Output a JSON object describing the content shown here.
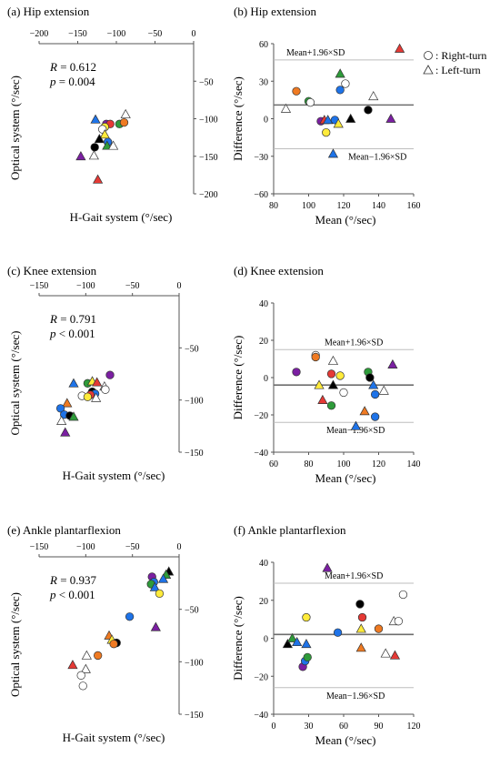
{
  "legend": {
    "circle": "○: Right-turn",
    "triangle": "△: Left-turn"
  },
  "chart_data": [
    {
      "panel": "a",
      "type": "scatter",
      "title": "(a) Hip extension",
      "xlabel": "H-Gait system (°/sec)",
      "ylabel": "Optical system (°/sec)",
      "xlim": [
        -200,
        0
      ],
      "ylim": [
        -200,
        0
      ],
      "xticks": [
        -200,
        -150,
        -100,
        -50,
        0
      ],
      "yticks": [
        -50,
        -100,
        -150,
        -200
      ],
      "annotations": [
        "R = 0.612",
        "p = 0.004"
      ],
      "points": [
        {
          "x": -127,
          "y": -101,
          "shape": "triangle",
          "color": "#1e73e8"
        },
        {
          "x": -113,
          "y": -107,
          "shape": "circle",
          "color": "#7b1fa2"
        },
        {
          "x": -108,
          "y": -107,
          "shape": "circle",
          "color": "#e53935"
        },
        {
          "x": -115,
          "y": -111,
          "shape": "circle",
          "color": "#ffeb3b"
        },
        {
          "x": -96,
          "y": -107,
          "shape": "circle",
          "color": "#2e9b3a"
        },
        {
          "x": -90,
          "y": -105,
          "shape": "circle",
          "color": "#ef7a22"
        },
        {
          "x": -88,
          "y": -94,
          "shape": "triangle",
          "color": "#ffffff"
        },
        {
          "x": -118,
          "y": -114,
          "shape": "circle",
          "color": "#ffffff"
        },
        {
          "x": -115,
          "y": -121,
          "shape": "triangle",
          "color": "#ffeb3b"
        },
        {
          "x": -122,
          "y": -127,
          "shape": "triangle",
          "color": "#000000"
        },
        {
          "x": -111,
          "y": -131,
          "shape": "circle",
          "color": "#1e73e8"
        },
        {
          "x": -112,
          "y": -136,
          "shape": "triangle",
          "color": "#2e9b3a"
        },
        {
          "x": -104,
          "y": -136,
          "shape": "triangle",
          "color": "#ffffff"
        },
        {
          "x": -128,
          "y": -138,
          "shape": "circle",
          "color": "#000000"
        },
        {
          "x": -146,
          "y": -150,
          "shape": "triangle",
          "color": "#7b1fa2"
        },
        {
          "x": -129,
          "y": -149,
          "shape": "triangle",
          "color": "#ffffff"
        },
        {
          "x": -124,
          "y": -181,
          "shape": "triangle",
          "color": "#e53935"
        }
      ]
    },
    {
      "panel": "b",
      "type": "scatter",
      "title": "(b) Hip extension",
      "xlabel": "Mean (°/sec)",
      "ylabel": "Difference (°/sec)",
      "xlim": [
        80,
        160
      ],
      "ylim": [
        -60,
        60
      ],
      "xticks": [
        80,
        100,
        120,
        140,
        160
      ],
      "yticks": [
        60,
        30,
        0,
        -30,
        -60
      ],
      "mean_line": 11,
      "upper_line": 47,
      "lower_line": -24,
      "upper_label": "Mean+1.96×SD",
      "lower_label": "Mean−1.96×SD",
      "points": [
        {
          "x": 87,
          "y": 8,
          "shape": "triangle",
          "color": "#ffffff"
        },
        {
          "x": 93,
          "y": 22,
          "shape": "circle",
          "color": "#ef7a22"
        },
        {
          "x": 100,
          "y": 14,
          "shape": "circle",
          "color": "#2e9b3a"
        },
        {
          "x": 101,
          "y": 13,
          "shape": "circle",
          "color": "#ffffff"
        },
        {
          "x": 107,
          "y": -2,
          "shape": "circle",
          "color": "#7b1fa2"
        },
        {
          "x": 109,
          "y": -1,
          "shape": "triangle",
          "color": "#e53935"
        },
        {
          "x": 111,
          "y": -1,
          "shape": "triangle",
          "color": "#1e73e8"
        },
        {
          "x": 110,
          "y": -11,
          "shape": "circle",
          "color": "#ffeb3b"
        },
        {
          "x": 115,
          "y": -1,
          "shape": "circle",
          "color": "#1e73e8"
        },
        {
          "x": 114,
          "y": -28,
          "shape": "triangle",
          "color": "#1e73e8"
        },
        {
          "x": 117,
          "y": -4,
          "shape": "triangle",
          "color": "#ffeb3b"
        },
        {
          "x": 118,
          "y": 23,
          "shape": "circle",
          "color": "#1e73e8"
        },
        {
          "x": 118,
          "y": 36,
          "shape": "triangle",
          "color": "#2e9b3a"
        },
        {
          "x": 121,
          "y": 28,
          "shape": "circle",
          "color": "#ffffff"
        },
        {
          "x": 124,
          "y": 0,
          "shape": "triangle",
          "color": "#000000"
        },
        {
          "x": 134,
          "y": 7,
          "shape": "circle",
          "color": "#000000"
        },
        {
          "x": 137,
          "y": 18,
          "shape": "triangle",
          "color": "#ffffff"
        },
        {
          "x": 147,
          "y": 0,
          "shape": "triangle",
          "color": "#7b1fa2"
        },
        {
          "x": 152,
          "y": 56,
          "shape": "triangle",
          "color": "#e53935"
        }
      ]
    },
    {
      "panel": "c",
      "type": "scatter",
      "title": "(c) Knee extension",
      "xlabel": "H-Gait system (°/sec)",
      "ylabel": "Optical system (°/sec)",
      "xlim": [
        -150,
        0
      ],
      "ylim": [
        -150,
        0
      ],
      "xticks": [
        -150,
        -100,
        -50,
        0
      ],
      "yticks": [
        -50,
        -100,
        -150
      ],
      "annotations": [
        "R = 0.791",
        "p < 0.001"
      ],
      "points": [
        {
          "x": -74,
          "y": -76,
          "shape": "circle",
          "color": "#7b1fa2"
        },
        {
          "x": -98,
          "y": -84,
          "shape": "circle",
          "color": "#2e9b3a"
        },
        {
          "x": -93,
          "y": -82,
          "shape": "triangle",
          "color": "#ffeb3b"
        },
        {
          "x": -88,
          "y": -83,
          "shape": "triangle",
          "color": "#e53935"
        },
        {
          "x": -113,
          "y": -84,
          "shape": "triangle",
          "color": "#1e73e8"
        },
        {
          "x": -80,
          "y": -87,
          "shape": "triangle",
          "color": "#ffffff"
        },
        {
          "x": -79,
          "y": -90,
          "shape": "circle",
          "color": "#ffffff"
        },
        {
          "x": -93,
          "y": -92,
          "shape": "circle",
          "color": "#000000"
        },
        {
          "x": -90,
          "y": -94,
          "shape": "circle",
          "color": "#1e73e8"
        },
        {
          "x": -95,
          "y": -95,
          "shape": "circle",
          "color": "#e53935"
        },
        {
          "x": -104,
          "y": -96,
          "shape": "circle",
          "color": "#ffffff"
        },
        {
          "x": -98,
          "y": -97,
          "shape": "circle",
          "color": "#ffeb3b"
        },
        {
          "x": -89,
          "y": -98,
          "shape": "triangle",
          "color": "#ffffff"
        },
        {
          "x": -120,
          "y": -103,
          "shape": "triangle",
          "color": "#ef7a22"
        },
        {
          "x": -127,
          "y": -108,
          "shape": "circle",
          "color": "#1e73e8"
        },
        {
          "x": -123,
          "y": -114,
          "shape": "circle",
          "color": "#1e73e8"
        },
        {
          "x": -117,
          "y": -115,
          "shape": "circle",
          "color": "#000000"
        },
        {
          "x": -113,
          "y": -116,
          "shape": "triangle",
          "color": "#2e9b3a"
        },
        {
          "x": -126,
          "y": -120,
          "shape": "triangle",
          "color": "#ffffff"
        },
        {
          "x": -122,
          "y": -131,
          "shape": "triangle",
          "color": "#7b1fa2"
        }
      ]
    },
    {
      "panel": "d",
      "type": "scatter",
      "title": "(d) Knee extension",
      "xlabel": "Mean (°/sec)",
      "ylabel": "Difference (°/sec)",
      "xlim": [
        60,
        140
      ],
      "ylim": [
        -40,
        40
      ],
      "xticks": [
        60,
        80,
        100,
        120,
        140
      ],
      "yticks": [
        40,
        20,
        0,
        -20,
        -40
      ],
      "mean_line": -4,
      "upper_line": 15,
      "lower_line": -24,
      "upper_label": "Mean+1.96×SD",
      "lower_label": "Mean−1.96×SD",
      "points": [
        {
          "x": 73,
          "y": 3,
          "shape": "circle",
          "color": "#7b1fa2"
        },
        {
          "x": 84,
          "y": 12,
          "shape": "circle",
          "color": "#ffffff"
        },
        {
          "x": 84,
          "y": 11,
          "shape": "circle",
          "color": "#ef7a22"
        },
        {
          "x": 86,
          "y": -4,
          "shape": "triangle",
          "color": "#ffeb3b"
        },
        {
          "x": 88,
          "y": -12,
          "shape": "triangle",
          "color": "#e53935"
        },
        {
          "x": 93,
          "y": 2,
          "shape": "circle",
          "color": "#e53935"
        },
        {
          "x": 94,
          "y": 9,
          "shape": "triangle",
          "color": "#ffffff"
        },
        {
          "x": 94,
          "y": -4,
          "shape": "triangle",
          "color": "#000000"
        },
        {
          "x": 93,
          "y": -15,
          "shape": "circle",
          "color": "#2e9b3a"
        },
        {
          "x": 98,
          "y": 1,
          "shape": "circle",
          "color": "#ffeb3b"
        },
        {
          "x": 100,
          "y": -8,
          "shape": "circle",
          "color": "#ffffff"
        },
        {
          "x": 114,
          "y": 3,
          "shape": "circle",
          "color": "#2e9b3a"
        },
        {
          "x": 115,
          "y": 0,
          "shape": "circle",
          "color": "#000000"
        },
        {
          "x": 117,
          "y": -4,
          "shape": "triangle",
          "color": "#1e73e8"
        },
        {
          "x": 118,
          "y": -9,
          "shape": "circle",
          "color": "#1e73e8"
        },
        {
          "x": 112,
          "y": -18,
          "shape": "triangle",
          "color": "#ef7a22"
        },
        {
          "x": 118,
          "y": -21,
          "shape": "circle",
          "color": "#1e73e8"
        },
        {
          "x": 123,
          "y": -7,
          "shape": "triangle",
          "color": "#ffffff"
        },
        {
          "x": 128,
          "y": 7,
          "shape": "triangle",
          "color": "#7b1fa2"
        },
        {
          "x": 107,
          "y": -26,
          "shape": "triangle",
          "color": "#1e73e8"
        }
      ]
    },
    {
      "panel": "e",
      "type": "scatter",
      "title": "(e) Ankle plantarflexion",
      "xlabel": "H-Gait system (°/sec)",
      "ylabel": "Optical system (°/sec)",
      "xlim": [
        -150,
        0
      ],
      "ylim": [
        -150,
        0
      ],
      "xticks": [
        -150,
        -100,
        -50,
        0
      ],
      "yticks": [
        -50,
        -100,
        -150
      ],
      "annotations": [
        "R = 0.937",
        "p < 0.001"
      ],
      "points": [
        {
          "x": -11,
          "y": -14,
          "shape": "triangle",
          "color": "#000000"
        },
        {
          "x": -14,
          "y": -17,
          "shape": "triangle",
          "color": "#2e9b3a"
        },
        {
          "x": -17,
          "y": -21,
          "shape": "triangle",
          "color": "#1e73e8"
        },
        {
          "x": -29,
          "y": -19,
          "shape": "circle",
          "color": "#7b1fa2"
        },
        {
          "x": -27,
          "y": -24,
          "shape": "circle",
          "color": "#1e73e8"
        },
        {
          "x": -30,
          "y": -26,
          "shape": "circle",
          "color": "#2e9b3a"
        },
        {
          "x": -26,
          "y": -29,
          "shape": "triangle",
          "color": "#1e73e8"
        },
        {
          "x": -21,
          "y": -35,
          "shape": "circle",
          "color": "#ffeb3b"
        },
        {
          "x": -53,
          "y": -57,
          "shape": "circle",
          "color": "#1e73e8"
        },
        {
          "x": -25,
          "y": -67,
          "shape": "triangle",
          "color": "#7b1fa2"
        },
        {
          "x": -75,
          "y": -75,
          "shape": "triangle",
          "color": "#ef7a22"
        },
        {
          "x": -72,
          "y": -79,
          "shape": "triangle",
          "color": "#ffeb3b"
        },
        {
          "x": -67,
          "y": -82,
          "shape": "circle",
          "color": "#000000"
        },
        {
          "x": -70,
          "y": -83,
          "shape": "circle",
          "color": "#ef7a22"
        },
        {
          "x": -99,
          "y": -94,
          "shape": "triangle",
          "color": "#ffffff"
        },
        {
          "x": -87,
          "y": -94,
          "shape": "circle",
          "color": "#ef7a22"
        },
        {
          "x": -100,
          "y": -107,
          "shape": "triangle",
          "color": "#ffffff"
        },
        {
          "x": -105,
          "y": -113,
          "shape": "circle",
          "color": "#ffffff"
        },
        {
          "x": -114,
          "y": -103,
          "shape": "triangle",
          "color": "#e53935"
        },
        {
          "x": -103,
          "y": -123,
          "shape": "circle",
          "color": "#ffffff"
        }
      ]
    },
    {
      "panel": "f",
      "type": "scatter",
      "title": "(f) Ankle plantarflexion",
      "xlabel": "Mean (°/sec)",
      "ylabel": "Difference (°/sec)",
      "xlim": [
        0,
        120
      ],
      "ylim": [
        -40,
        40
      ],
      "xticks": [
        0,
        30,
        60,
        90,
        120
      ],
      "yticks": [
        40,
        20,
        0,
        -20,
        -40
      ],
      "mean_line": 2,
      "upper_line": 29,
      "lower_line": -26,
      "upper_label": "Mean+1.96×SD",
      "lower_label": "Mean−1.96×SD",
      "points": [
        {
          "x": 12,
          "y": -3,
          "shape": "triangle",
          "color": "#000000"
        },
        {
          "x": 16,
          "y": 0,
          "shape": "triangle",
          "color": "#2e9b3a"
        },
        {
          "x": 20,
          "y": -2,
          "shape": "triangle",
          "color": "#1e73e8"
        },
        {
          "x": 25,
          "y": -15,
          "shape": "circle",
          "color": "#7b1fa2"
        },
        {
          "x": 27,
          "y": -12,
          "shape": "circle",
          "color": "#1e73e8"
        },
        {
          "x": 29,
          "y": -10,
          "shape": "circle",
          "color": "#2e9b3a"
        },
        {
          "x": 28,
          "y": -3,
          "shape": "triangle",
          "color": "#1e73e8"
        },
        {
          "x": 28,
          "y": 11,
          "shape": "circle",
          "color": "#ffeb3b"
        },
        {
          "x": 46,
          "y": 37,
          "shape": "triangle",
          "color": "#7b1fa2"
        },
        {
          "x": 55,
          "y": 3,
          "shape": "circle",
          "color": "#1e73e8"
        },
        {
          "x": 74,
          "y": 18,
          "shape": "circle",
          "color": "#000000"
        },
        {
          "x": 76,
          "y": 11,
          "shape": "circle",
          "color": "#e53935"
        },
        {
          "x": 75,
          "y": 5,
          "shape": "triangle",
          "color": "#ffeb3b"
        },
        {
          "x": 75,
          "y": -5,
          "shape": "triangle",
          "color": "#ef7a22"
        },
        {
          "x": 90,
          "y": 5,
          "shape": "circle",
          "color": "#ef7a22"
        },
        {
          "x": 96,
          "y": -8,
          "shape": "triangle",
          "color": "#ffffff"
        },
        {
          "x": 103,
          "y": 9,
          "shape": "triangle",
          "color": "#ffffff"
        },
        {
          "x": 107,
          "y": 9,
          "shape": "circle",
          "color": "#ffffff"
        },
        {
          "x": 104,
          "y": -9,
          "shape": "triangle",
          "color": "#e53935"
        },
        {
          "x": 111,
          "y": 23,
          "shape": "circle",
          "color": "#ffffff"
        }
      ]
    }
  ]
}
